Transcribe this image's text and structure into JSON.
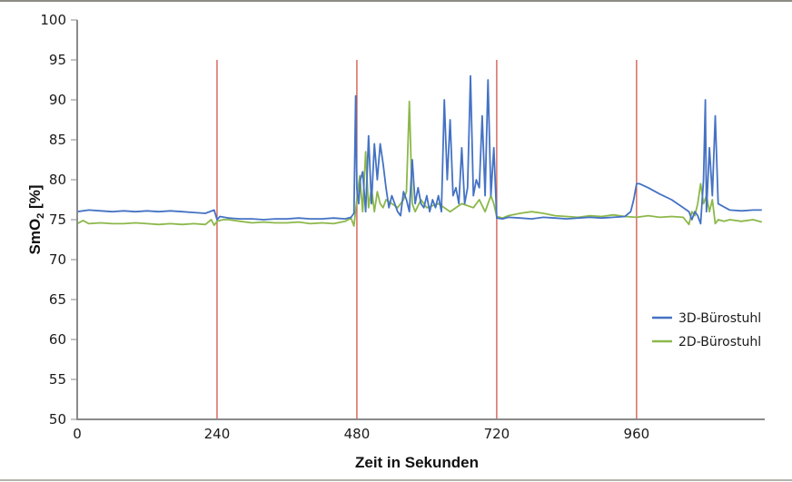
{
  "chart_data": {
    "type": "line",
    "title": "",
    "xlabel": "Zeit in Sekunden",
    "ylabel": "SmO2 [%]",
    "ylabel_main": "SmO",
    "ylabel_sub": "2",
    "ylabel_suffix": " [%]",
    "xlim": [
      0,
      1180
    ],
    "ylim": [
      50,
      100
    ],
    "x_ticks": [
      0,
      240,
      480,
      720,
      960
    ],
    "y_ticks": [
      50,
      55,
      60,
      65,
      70,
      75,
      80,
      85,
      90,
      95,
      100
    ],
    "grid": false,
    "legend_position": "right",
    "markers": {
      "x": [
        240,
        480,
        720,
        960
      ],
      "y_top": 95,
      "color": "#d0544a"
    },
    "series": [
      {
        "name": "3D-Bürostuhl",
        "color": "#4472c4",
        "x": [
          0,
          20,
          40,
          60,
          80,
          100,
          120,
          140,
          160,
          180,
          200,
          220,
          235,
          240,
          245,
          260,
          280,
          300,
          320,
          340,
          360,
          380,
          400,
          420,
          440,
          460,
          470,
          475,
          478,
          480,
          483,
          486,
          490,
          495,
          500,
          505,
          510,
          515,
          520,
          525,
          530,
          535,
          540,
          545,
          550,
          555,
          560,
          565,
          570,
          575,
          580,
          585,
          590,
          595,
          600,
          605,
          610,
          615,
          620,
          625,
          630,
          635,
          640,
          645,
          650,
          655,
          660,
          665,
          670,
          675,
          680,
          685,
          690,
          695,
          700,
          705,
          710,
          715,
          720,
          730,
          740,
          760,
          780,
          800,
          820,
          840,
          860,
          880,
          900,
          920,
          940,
          950,
          955,
          960,
          965,
          980,
          1000,
          1020,
          1040,
          1050,
          1055,
          1060,
          1065,
          1070,
          1075,
          1078,
          1080,
          1085,
          1090,
          1095,
          1100,
          1120,
          1140,
          1160,
          1175
        ],
        "y": [
          76.0,
          76.2,
          76.1,
          76.0,
          76.1,
          76.0,
          76.1,
          76.0,
          76.1,
          76.0,
          75.9,
          75.8,
          76.2,
          75.0,
          75.4,
          75.2,
          75.1,
          75.1,
          75.0,
          75.1,
          75.1,
          75.2,
          75.1,
          75.1,
          75.2,
          75.1,
          75.3,
          75.8,
          90.5,
          79.0,
          77.0,
          80.0,
          81.0,
          76.0,
          85.5,
          77.0,
          84.5,
          80.0,
          84.5,
          82.0,
          79.0,
          76.5,
          78.0,
          77.0,
          76.0,
          75.5,
          78.5,
          77.5,
          76.0,
          82.5,
          77.0,
          79.0,
          77.0,
          76.5,
          78.0,
          76.0,
          77.5,
          76.5,
          78.0,
          76.0,
          90.0,
          80.0,
          87.5,
          78.0,
          79.0,
          77.0,
          84.0,
          77.0,
          79.0,
          93.0,
          78.0,
          80.0,
          79.0,
          88.0,
          78.0,
          92.5,
          78.0,
          84.0,
          75.2,
          75.1,
          75.3,
          75.2,
          75.1,
          75.3,
          75.2,
          75.1,
          75.2,
          75.3,
          75.2,
          75.3,
          75.4,
          76.0,
          77.5,
          79.5,
          79.5,
          79.0,
          78.2,
          77.5,
          76.5,
          76.0,
          75.0,
          76.0,
          75.5,
          74.5,
          80.0,
          90.0,
          76.0,
          84.0,
          78.0,
          88.0,
          77.0,
          76.2,
          76.1,
          76.2,
          76.2
        ]
      },
      {
        "name": "2D-Bürostuhl",
        "color": "#8cb84a",
        "x": [
          0,
          10,
          20,
          40,
          60,
          80,
          100,
          120,
          140,
          160,
          180,
          200,
          220,
          230,
          235,
          240,
          250,
          260,
          280,
          300,
          320,
          340,
          360,
          380,
          400,
          420,
          440,
          460,
          470,
          475,
          480,
          485,
          490,
          495,
          500,
          505,
          510,
          515,
          520,
          525,
          530,
          540,
          550,
          560,
          565,
          570,
          575,
          580,
          590,
          600,
          620,
          640,
          660,
          680,
          690,
          700,
          710,
          715,
          720,
          730,
          740,
          760,
          780,
          800,
          820,
          840,
          860,
          880,
          900,
          920,
          940,
          960,
          980,
          1000,
          1020,
          1040,
          1050,
          1055,
          1060,
          1065,
          1070,
          1075,
          1080,
          1085,
          1090,
          1095,
          1100,
          1110,
          1120,
          1140,
          1160,
          1175
        ],
        "y": [
          74.5,
          74.9,
          74.5,
          74.6,
          74.5,
          74.5,
          74.6,
          74.5,
          74.4,
          74.5,
          74.4,
          74.5,
          74.4,
          75.0,
          74.3,
          74.8,
          75.0,
          75.0,
          74.8,
          74.6,
          74.7,
          74.6,
          74.6,
          74.7,
          74.5,
          74.6,
          74.5,
          74.8,
          75.2,
          74.2,
          77.5,
          80.5,
          76.0,
          83.5,
          76.5,
          79.0,
          76.0,
          78.5,
          77.0,
          76.5,
          77.5,
          77.0,
          76.5,
          77.5,
          78.5,
          89.8,
          77.0,
          76.0,
          77.5,
          76.5,
          77.0,
          76.0,
          77.0,
          76.5,
          77.5,
          76.0,
          78.0,
          77.0,
          75.4,
          75.2,
          75.5,
          75.8,
          76.0,
          75.8,
          75.5,
          75.4,
          75.3,
          75.5,
          75.4,
          75.6,
          75.4,
          75.3,
          75.5,
          75.3,
          75.4,
          75.3,
          74.4,
          76.0,
          75.5,
          77.0,
          79.5,
          77.0,
          78.0,
          76.0,
          77.5,
          74.5,
          75.0,
          74.8,
          75.0,
          74.8,
          75.0,
          74.7
        ]
      }
    ]
  }
}
